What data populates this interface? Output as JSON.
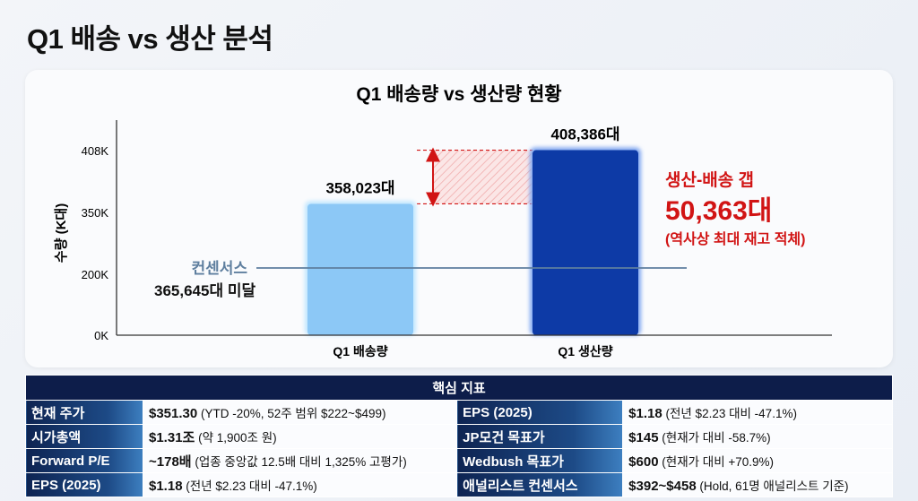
{
  "page_title": "Q1 배송 vs 생산 분석",
  "chart_data": {
    "type": "bar",
    "title": "Q1 배송량 vs 생산량 현황",
    "ylabel": "수량 (K대)",
    "xlabel": "",
    "y_ticks": [
      {
        "value": 0,
        "label": "0K"
      },
      {
        "value": 200000,
        "label": "200K"
      },
      {
        "value": 350000,
        "label": "350K"
      },
      {
        "value": 408000,
        "label": "408K"
      }
    ],
    "categories": [
      "Q1 배송량",
      "Q1 생산량"
    ],
    "values": [
      358023,
      408386
    ],
    "value_labels": [
      "358,023대",
      "408,386대"
    ],
    "colors": [
      "#8cc8f6",
      "#0d3aa6"
    ],
    "consensus": {
      "label": "컨센서스",
      "value": 365645,
      "note": "365,645대 미달",
      "color": "#5f7f9f"
    },
    "gap": {
      "title": "생산-배송 갭",
      "value": 50363,
      "value_label": "50,363대",
      "note": "(역사상 최대 재고 적체)",
      "color": "#d11414"
    }
  },
  "table": {
    "header": "핵심 지표",
    "rows": [
      [
        {
          "label": "현재 주가",
          "main": "$351.30",
          "sub": " (YTD -20%, 52주 범위 $222~$499)"
        },
        {
          "label": "EPS (2025)",
          "main": "$1.18",
          "sub": " (전년 $2.23 대비 -47.1%)"
        }
      ],
      [
        {
          "label": "시가총액",
          "main": "$1.31조",
          "sub": " (약 1,900조 원)"
        },
        {
          "label": "JP모건 목표가",
          "main": "$145",
          "sub": " (현재가 대비 -58.7%)"
        }
      ],
      [
        {
          "label": "Forward P/E",
          "main": "~178배",
          "sub": " (업종 중앙값 12.5배 대비 1,325% 고평가)"
        },
        {
          "label": "Wedbush 목표가",
          "main": "$600",
          "sub": " (현재가 대비 +70.9%)"
        }
      ],
      [
        {
          "label": "EPS (2025)",
          "main": "$1.18",
          "sub": " (전년 $2.23 대비 -47.1%)"
        },
        {
          "label": "애널리스트 컨센서스",
          "main": "$392~$458",
          "sub": " (Hold, 61명 애널리스트 기준)"
        }
      ]
    ]
  }
}
